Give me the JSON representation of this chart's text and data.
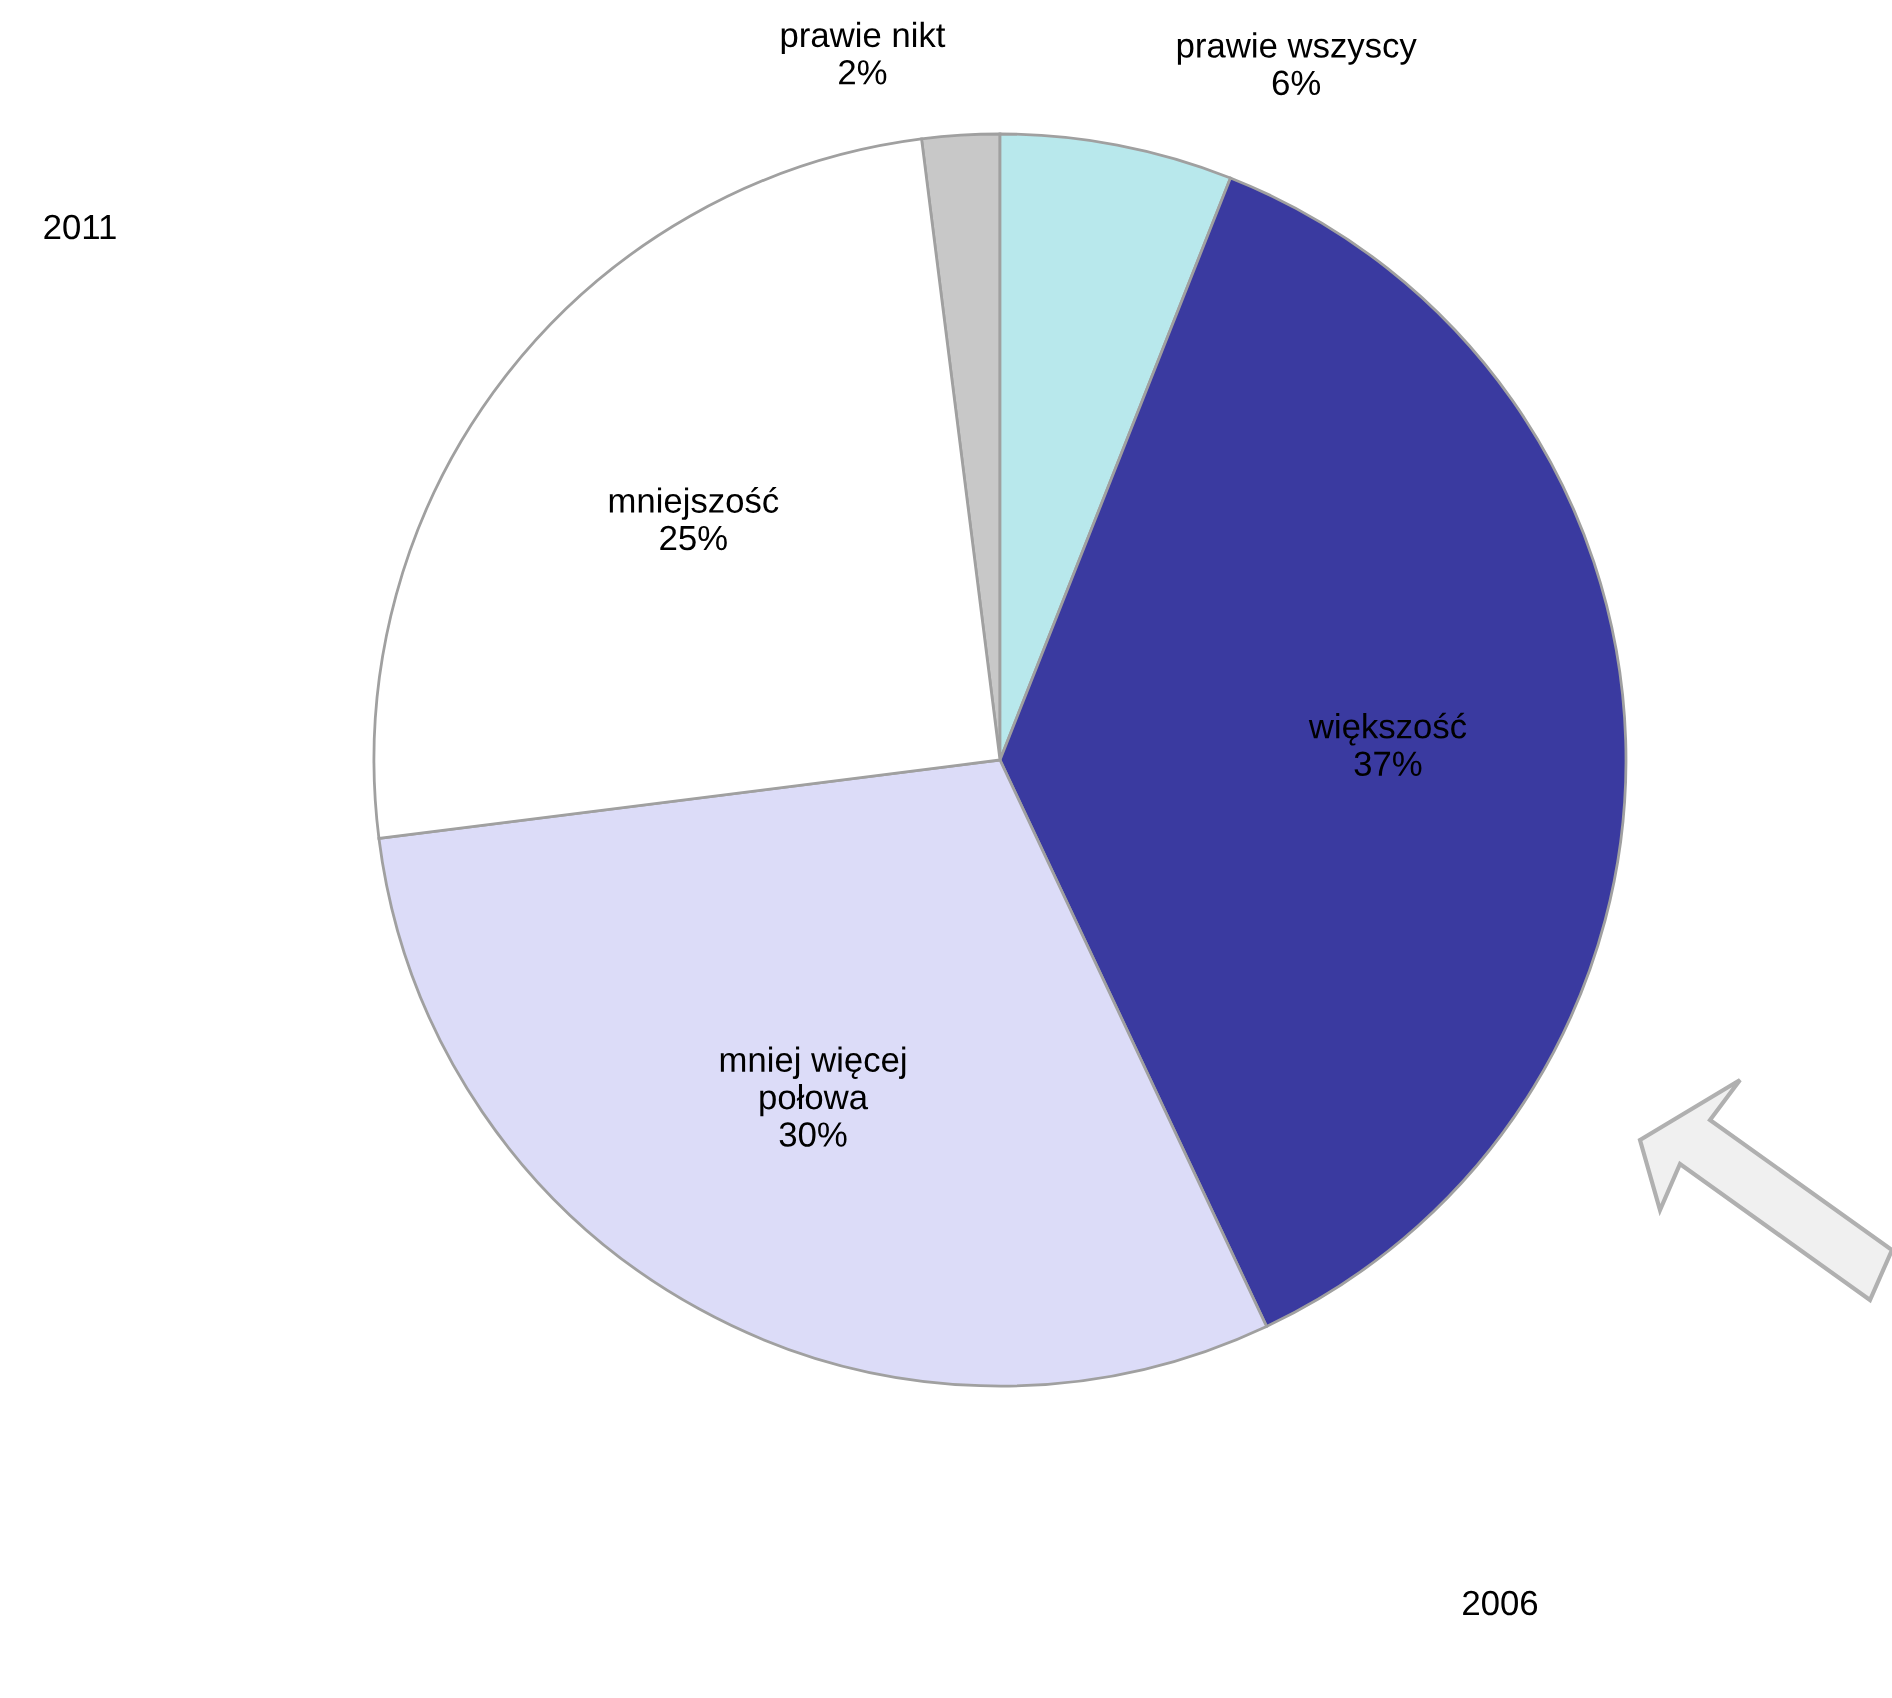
{
  "chart_data": {
    "type": "pie",
    "categories": [
      "prawie nikt",
      "prawie wszyscy",
      "większość",
      "mniej więcej\npołowa",
      "mniejszość"
    ],
    "values": [
      2,
      6,
      37,
      30,
      25
    ],
    "value_labels": [
      "2%",
      "6%",
      "37%",
      "30%",
      "25%"
    ],
    "colors": [
      "#c8c8c8",
      "#b8e8ec",
      "#3a3aa0",
      "#dcdcf8",
      "#ffffff"
    ],
    "annotations": [
      "2011",
      "2006"
    ]
  }
}
